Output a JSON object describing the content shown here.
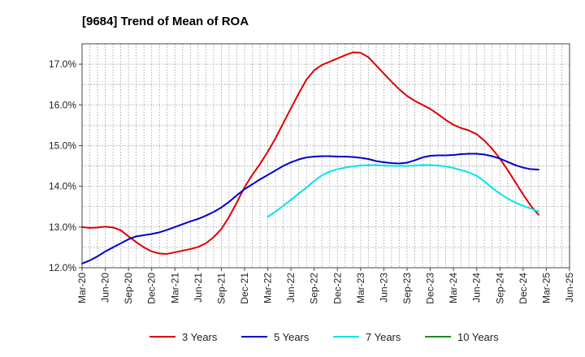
{
  "chart_data": {
    "type": "line",
    "title": "[9684]  Trend of Mean of ROA",
    "xlabel": "",
    "ylabel": "",
    "x_ticks": [
      "Mar-20",
      "Jun-20",
      "Sep-20",
      "Dec-20",
      "Mar-21",
      "Jun-21",
      "Sep-21",
      "Dec-21",
      "Mar-22",
      "Jun-22",
      "Sep-22",
      "Dec-22",
      "Mar-23",
      "Jun-23",
      "Sep-23",
      "Dec-23",
      "Mar-24",
      "Jun-24",
      "Sep-24",
      "Dec-24",
      "Mar-25",
      "Jun-25"
    ],
    "y_ticks": [
      "12.0%",
      "13.0%",
      "14.0%",
      "15.0%",
      "16.0%",
      "17.0%"
    ],
    "y_tick_values": [
      12,
      13,
      14,
      15,
      16,
      17
    ],
    "ylim": [
      12.0,
      17.5
    ],
    "grid": true,
    "legend_position": "bottom",
    "series": [
      {
        "name": "3 Years",
        "color": "#dd0000",
        "points": [
          [
            "Mar-20",
            13.0
          ],
          [
            "Apr-20",
            12.98
          ],
          [
            "May-20",
            12.99
          ],
          [
            "Jun-20",
            13.01
          ],
          [
            "Jul-20",
            12.99
          ],
          [
            "Aug-20",
            12.92
          ],
          [
            "Sep-20",
            12.77
          ],
          [
            "Oct-20",
            12.63
          ],
          [
            "Nov-20",
            12.5
          ],
          [
            "Dec-20",
            12.4
          ],
          [
            "Jan-21",
            12.35
          ],
          [
            "Feb-21",
            12.34
          ],
          [
            "Mar-21",
            12.38
          ],
          [
            "Apr-21",
            12.42
          ],
          [
            "May-21",
            12.46
          ],
          [
            "Jun-21",
            12.51
          ],
          [
            "Jul-21",
            12.6
          ],
          [
            "Aug-21",
            12.75
          ],
          [
            "Sep-21",
            12.95
          ],
          [
            "Oct-21",
            13.25
          ],
          [
            "Nov-21",
            13.6
          ],
          [
            "Dec-21",
            13.98
          ],
          [
            "Jan-22",
            14.28
          ],
          [
            "Feb-22",
            14.55
          ],
          [
            "Mar-22",
            14.85
          ],
          [
            "Apr-22",
            15.18
          ],
          [
            "May-22",
            15.55
          ],
          [
            "Jun-22",
            15.92
          ],
          [
            "Jul-22",
            16.28
          ],
          [
            "Aug-22",
            16.62
          ],
          [
            "Sep-22",
            16.85
          ],
          [
            "Oct-22",
            16.98
          ],
          [
            "Nov-22",
            17.06
          ],
          [
            "Dec-22",
            17.14
          ],
          [
            "Jan-23",
            17.22
          ],
          [
            "Feb-23",
            17.29
          ],
          [
            "Mar-23",
            17.28
          ],
          [
            "Apr-23",
            17.17
          ],
          [
            "May-23",
            16.97
          ],
          [
            "Jun-23",
            16.77
          ],
          [
            "Jul-23",
            16.57
          ],
          [
            "Aug-23",
            16.38
          ],
          [
            "Sep-23",
            16.22
          ],
          [
            "Oct-23",
            16.1
          ],
          [
            "Nov-23",
            16.0
          ],
          [
            "Dec-23",
            15.9
          ],
          [
            "Jan-24",
            15.77
          ],
          [
            "Feb-24",
            15.63
          ],
          [
            "Mar-24",
            15.51
          ],
          [
            "Apr-24",
            15.43
          ],
          [
            "May-24",
            15.37
          ],
          [
            "Jun-24",
            15.28
          ],
          [
            "Jul-24",
            15.12
          ],
          [
            "Aug-24",
            14.92
          ],
          [
            "Sep-24",
            14.68
          ],
          [
            "Oct-24",
            14.4
          ],
          [
            "Nov-24",
            14.1
          ],
          [
            "Dec-24",
            13.8
          ],
          [
            "Jan-25",
            13.52
          ],
          [
            "Feb-25",
            13.3
          ]
        ]
      },
      {
        "name": "5 Years",
        "color": "#0000cc",
        "points": [
          [
            "Mar-20",
            12.1
          ],
          [
            "Apr-20",
            12.18
          ],
          [
            "May-20",
            12.28
          ],
          [
            "Jun-20",
            12.4
          ],
          [
            "Jul-20",
            12.5
          ],
          [
            "Aug-20",
            12.6
          ],
          [
            "Sep-20",
            12.7
          ],
          [
            "Oct-20",
            12.77
          ],
          [
            "Nov-20",
            12.8
          ],
          [
            "Dec-20",
            12.83
          ],
          [
            "Jan-21",
            12.87
          ],
          [
            "Feb-21",
            12.93
          ],
          [
            "Mar-21",
            13.0
          ],
          [
            "Apr-21",
            13.07
          ],
          [
            "May-21",
            13.14
          ],
          [
            "Jun-21",
            13.2
          ],
          [
            "Jul-21",
            13.28
          ],
          [
            "Aug-21",
            13.37
          ],
          [
            "Sep-21",
            13.48
          ],
          [
            "Oct-21",
            13.62
          ],
          [
            "Nov-21",
            13.78
          ],
          [
            "Dec-21",
            13.93
          ],
          [
            "Jan-22",
            14.05
          ],
          [
            "Feb-22",
            14.17
          ],
          [
            "Mar-22",
            14.28
          ],
          [
            "Apr-22",
            14.39
          ],
          [
            "May-22",
            14.5
          ],
          [
            "Jun-22",
            14.59
          ],
          [
            "Jul-22",
            14.66
          ],
          [
            "Aug-22",
            14.71
          ],
          [
            "Sep-22",
            14.73
          ],
          [
            "Oct-22",
            14.74
          ],
          [
            "Nov-22",
            14.74
          ],
          [
            "Dec-22",
            14.73
          ],
          [
            "Jan-23",
            14.73
          ],
          [
            "Feb-23",
            14.72
          ],
          [
            "Mar-23",
            14.7
          ],
          [
            "Apr-23",
            14.67
          ],
          [
            "May-23",
            14.62
          ],
          [
            "Jun-23",
            14.59
          ],
          [
            "Jul-23",
            14.57
          ],
          [
            "Aug-23",
            14.56
          ],
          [
            "Sep-23",
            14.58
          ],
          [
            "Oct-23",
            14.64
          ],
          [
            "Nov-23",
            14.71
          ],
          [
            "Dec-23",
            14.75
          ],
          [
            "Jan-24",
            14.76
          ],
          [
            "Feb-24",
            14.76
          ],
          [
            "Mar-24",
            14.77
          ],
          [
            "Apr-24",
            14.79
          ],
          [
            "May-24",
            14.8
          ],
          [
            "Jun-24",
            14.8
          ],
          [
            "Jul-24",
            14.78
          ],
          [
            "Aug-24",
            14.74
          ],
          [
            "Sep-24",
            14.68
          ],
          [
            "Oct-24",
            14.6
          ],
          [
            "Nov-24",
            14.52
          ],
          [
            "Dec-24",
            14.46
          ],
          [
            "Jan-25",
            14.42
          ],
          [
            "Feb-25",
            14.41
          ]
        ]
      },
      {
        "name": "7 Years",
        "color": "#00e5ee",
        "points": [
          [
            "Mar-22",
            13.25
          ],
          [
            "Apr-22",
            13.38
          ],
          [
            "May-22",
            13.52
          ],
          [
            "Jun-22",
            13.67
          ],
          [
            "Jul-22",
            13.82
          ],
          [
            "Aug-22",
            13.97
          ],
          [
            "Sep-22",
            14.13
          ],
          [
            "Oct-22",
            14.27
          ],
          [
            "Nov-22",
            14.36
          ],
          [
            "Dec-22",
            14.42
          ],
          [
            "Jan-23",
            14.46
          ],
          [
            "Feb-23",
            14.49
          ],
          [
            "Mar-23",
            14.51
          ],
          [
            "Apr-23",
            14.52
          ],
          [
            "May-23",
            14.52
          ],
          [
            "Jun-23",
            14.51
          ],
          [
            "Jul-23",
            14.5
          ],
          [
            "Aug-23",
            14.5
          ],
          [
            "Sep-23",
            14.5
          ],
          [
            "Oct-23",
            14.51
          ],
          [
            "Nov-23",
            14.52
          ],
          [
            "Dec-23",
            14.52
          ],
          [
            "Jan-24",
            14.51
          ],
          [
            "Feb-24",
            14.49
          ],
          [
            "Mar-24",
            14.45
          ],
          [
            "Apr-24",
            14.4
          ],
          [
            "May-24",
            14.34
          ],
          [
            "Jun-24",
            14.26
          ],
          [
            "Jul-24",
            14.12
          ],
          [
            "Aug-24",
            13.96
          ],
          [
            "Sep-24",
            13.82
          ],
          [
            "Oct-24",
            13.7
          ],
          [
            "Nov-24",
            13.6
          ],
          [
            "Dec-24",
            13.52
          ],
          [
            "Jan-25",
            13.45
          ],
          [
            "Feb-25",
            13.38
          ]
        ]
      },
      {
        "name": "10 Years",
        "color": "#228b22",
        "points": []
      }
    ]
  }
}
